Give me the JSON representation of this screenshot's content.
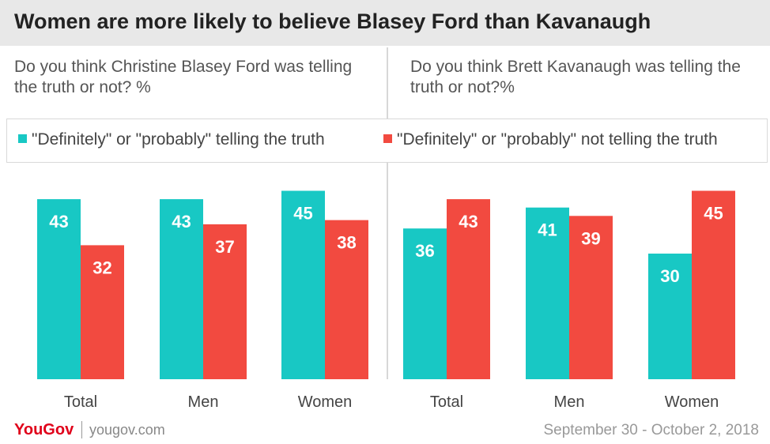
{
  "title": "Women are more likely to believe Blasey Ford than Kavanaugh",
  "questions": {
    "left": "Do you think Christine Blasey Ford was telling the truth or not? %",
    "right": "Do you think Brett Kavanaugh was telling the truth or not?%"
  },
  "legend": {
    "truth": "\"Definitely\" or \"probably\" telling the truth",
    "not_truth": "\"Definitely\" or \"probably\" not telling the truth"
  },
  "colors": {
    "truth": "#18c8c4",
    "not_truth": "#f24a40"
  },
  "footer": {
    "brand": "YouGov",
    "url": "yougov.com",
    "date": "September 30 - October 2, 2018"
  },
  "chart_data": [
    {
      "type": "bar",
      "title": "Do you think Christine Blasey Ford was telling the truth or not? %",
      "categories": [
        "Total",
        "Men",
        "Women"
      ],
      "series": [
        {
          "name": "\"Definitely\" or \"probably\" telling the truth",
          "values": [
            43,
            43,
            45
          ]
        },
        {
          "name": "\"Definitely\" or \"probably\" not telling the truth",
          "values": [
            32,
            37,
            38
          ]
        }
      ],
      "ylim": [
        0,
        50
      ]
    },
    {
      "type": "bar",
      "title": "Do you think Brett Kavanaugh was telling the truth or not?%",
      "categories": [
        "Total",
        "Men",
        "Women"
      ],
      "series": [
        {
          "name": "\"Definitely\" or \"probably\" telling the truth",
          "values": [
            36,
            41,
            30
          ]
        },
        {
          "name": "\"Definitely\" or \"probably\" not telling the truth",
          "values": [
            43,
            39,
            45
          ]
        }
      ],
      "ylim": [
        0,
        50
      ]
    }
  ]
}
